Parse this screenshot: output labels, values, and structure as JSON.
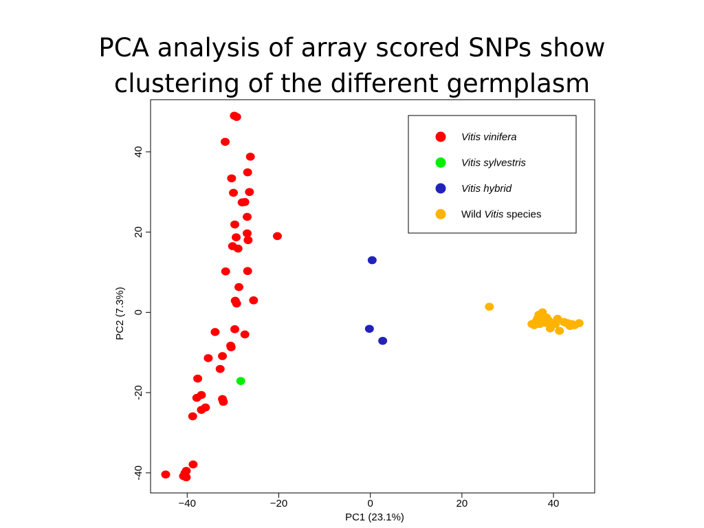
{
  "title_lines": [
    "PCA analysis of array scored SNPs show",
    "clustering of the different germplasm"
  ],
  "chart_data": {
    "type": "scatter",
    "xlabel": "PC1 (23.1%)",
    "ylabel": "PC2  (7.3%)",
    "xlim": [
      -48,
      49
    ],
    "ylim": [
      -45,
      53
    ],
    "xticks": [
      -40,
      -20,
      0,
      20,
      40
    ],
    "xtick_labels": [
      "−40",
      "−20",
      "0",
      "20",
      "40"
    ],
    "yticks": [
      -40,
      -20,
      0,
      20,
      40
    ],
    "ytick_labels": [
      "-40",
      "-20",
      "0",
      "20",
      "40"
    ],
    "grid": false,
    "legend_position": "top-right",
    "series": [
      {
        "name": "Vitis vinifera",
        "legend_italic": "Vitis vinifera",
        "legend_prefix": "",
        "legend_suffix": "",
        "color": "#ff0000",
        "points": [
          [
            -29.7,
            49.0
          ],
          [
            -29.2,
            48.7
          ],
          [
            -31.7,
            42.5
          ],
          [
            -26.2,
            38.8
          ],
          [
            -26.8,
            34.9
          ],
          [
            -30.3,
            33.4
          ],
          [
            -29.9,
            29.8
          ],
          [
            -26.4,
            30.0
          ],
          [
            -28.0,
            27.4
          ],
          [
            -27.4,
            27.5
          ],
          [
            -26.9,
            23.8
          ],
          [
            -29.6,
            21.9
          ],
          [
            -26.9,
            19.7
          ],
          [
            -29.3,
            18.7
          ],
          [
            -26.7,
            18.0
          ],
          [
            -20.3,
            19.0
          ],
          [
            -30.1,
            16.5
          ],
          [
            -28.9,
            15.9
          ],
          [
            -31.6,
            10.2
          ],
          [
            -26.8,
            10.3
          ],
          [
            -28.7,
            6.3
          ],
          [
            -29.5,
            2.9
          ],
          [
            -29.2,
            2.2
          ],
          [
            -25.5,
            3.0
          ],
          [
            -29.6,
            -4.2
          ],
          [
            -33.9,
            -4.9
          ],
          [
            -27.4,
            -5.5
          ],
          [
            -30.5,
            -8.3
          ],
          [
            -30.4,
            -8.7
          ],
          [
            -32.3,
            -10.9
          ],
          [
            -35.4,
            -11.4
          ],
          [
            -32.8,
            -14.1
          ],
          [
            -37.7,
            -16.5
          ],
          [
            -36.9,
            -20.6
          ],
          [
            -37.9,
            -21.3
          ],
          [
            -32.3,
            -21.6
          ],
          [
            -32.1,
            -22.3
          ],
          [
            -36.0,
            -23.7
          ],
          [
            -36.9,
            -24.3
          ],
          [
            -38.8,
            -25.9
          ],
          [
            -38.7,
            -37.9
          ],
          [
            -40.2,
            -39.5
          ],
          [
            -40.5,
            -40.1
          ],
          [
            -44.7,
            -40.4
          ],
          [
            -40.8,
            -40.8
          ],
          [
            -40.2,
            -41.1
          ]
        ]
      },
      {
        "name": "Vitis sylvestris",
        "legend_italic": "Vitis sylvestris",
        "legend_prefix": "",
        "legend_suffix": "",
        "color": "#00ee00",
        "points": [
          [
            -28.3,
            -17.1
          ]
        ]
      },
      {
        "name": "Vitis hybrid",
        "legend_italic": "Vitis hybrid",
        "legend_prefix": "",
        "legend_suffix": "",
        "color": "#2222bb",
        "points": [
          [
            0.4,
            13.0
          ],
          [
            -0.2,
            -4.1
          ],
          [
            2.7,
            -7.1
          ]
        ]
      },
      {
        "name": "Wild Vitis species",
        "legend_italic": "Vitis",
        "legend_prefix": "Wild ",
        "legend_suffix": " species",
        "color": "#ffb300",
        "points": [
          [
            26.0,
            1.4
          ],
          [
            35.3,
            -2.9
          ],
          [
            35.8,
            -3.2
          ],
          [
            36.2,
            -2.3
          ],
          [
            36.5,
            -1.6
          ],
          [
            36.8,
            -0.6
          ],
          [
            37.0,
            -2.9
          ],
          [
            37.3,
            -1.2
          ],
          [
            37.6,
            0.0
          ],
          [
            37.8,
            -2.1
          ],
          [
            38.2,
            -2.6
          ],
          [
            38.5,
            -1.3
          ],
          [
            38.9,
            -2.0
          ],
          [
            39.3,
            -4.0
          ],
          [
            39.8,
            -2.7
          ],
          [
            40.4,
            -2.9
          ],
          [
            40.9,
            -1.6
          ],
          [
            41.3,
            -4.6
          ],
          [
            42.3,
            -2.4
          ],
          [
            42.7,
            -2.6
          ],
          [
            43.1,
            -2.7
          ],
          [
            43.6,
            -3.4
          ],
          [
            44.0,
            -2.9
          ],
          [
            44.6,
            -3.2
          ],
          [
            45.6,
            -2.7
          ]
        ]
      }
    ]
  }
}
